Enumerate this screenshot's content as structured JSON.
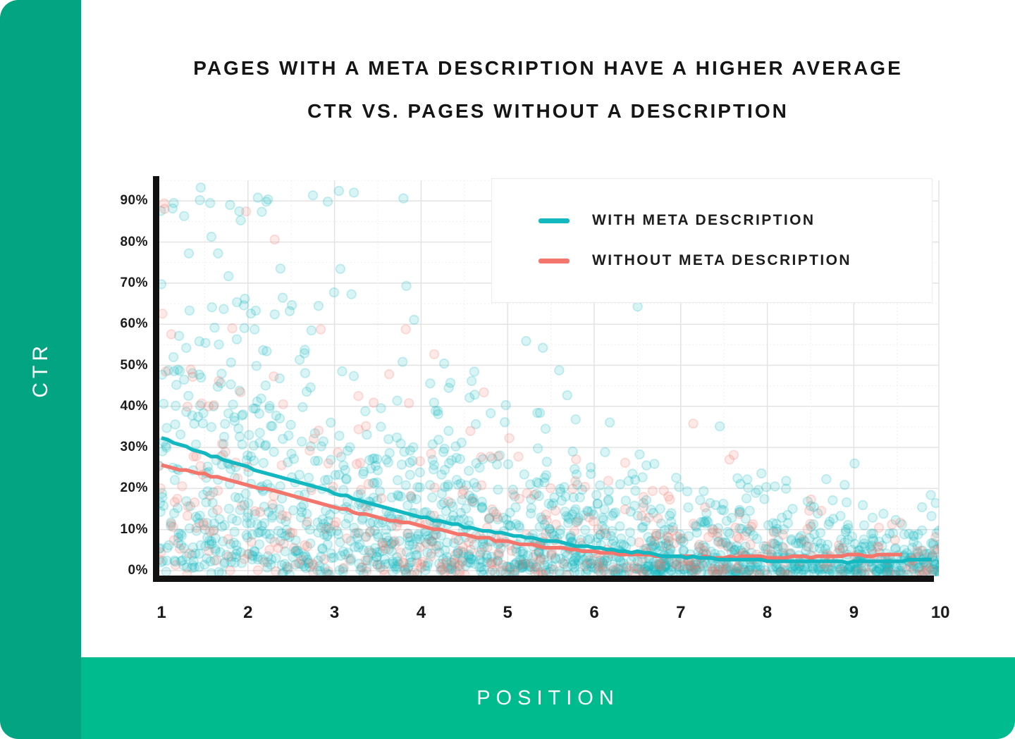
{
  "sidebar": {
    "label": "CTR",
    "color": "#03a482",
    "text_color": "#ffffff"
  },
  "bottom_bar": {
    "label": "POSITION",
    "color": "#00bb8e",
    "text_color": "#ffffff"
  },
  "title": {
    "line1": "PAGES WITH A META DESCRIPTION HAVE A HIGHER AVERAGE",
    "line2": "CTR VS. PAGES WITHOUT A DESCRIPTION",
    "color": "#151515"
  },
  "legend": {
    "items": [
      {
        "label": "WITH META DESCRIPTION",
        "color": "#14b8c0"
      },
      {
        "label": "WITHOUT META DESCRIPTION",
        "color": "#f3756c"
      }
    ]
  },
  "chart_data": {
    "type": "scatter",
    "title": "PAGES WITH A META DESCRIPTION HAVE A HIGHER AVERAGE CTR VS. PAGES WITHOUT A DESCRIPTION",
    "xlabel": "POSITION",
    "ylabel": "CTR",
    "x_ticks": [
      "1",
      "2",
      "3",
      "4",
      "5",
      "6",
      "7",
      "8",
      "9",
      "10"
    ],
    "y_ticks": [
      "0%",
      "10%",
      "20%",
      "30%",
      "40%",
      "50%",
      "60%",
      "70%",
      "80%",
      "90%"
    ],
    "xlim": [
      0.95,
      10.05
    ],
    "ylim_percent": [
      -2,
      95
    ],
    "legend_position": "top-right",
    "axis_color": "#111111",
    "grid": {
      "x_minor_step": 0.5,
      "y_minor_step_percent": 5,
      "color_major": "#e3e3e3",
      "color_minor": "#efefef"
    },
    "series": [
      {
        "name": "WITH META DESCRIPTION",
        "color": "#14b8c0",
        "trend_percent": [
          [
            1,
            32.2
          ],
          [
            1.5,
            28.5
          ],
          [
            2,
            25.0
          ],
          [
            2.5,
            22.0
          ],
          [
            3,
            19.0
          ],
          [
            3.5,
            15.8
          ],
          [
            4,
            13.0
          ],
          [
            4.5,
            10.7
          ],
          [
            5,
            8.8
          ],
          [
            5.5,
            7.1
          ],
          [
            6,
            5.6
          ],
          [
            6.5,
            4.4
          ],
          [
            7,
            3.4
          ],
          [
            7.5,
            2.8
          ],
          [
            8,
            2.4
          ],
          [
            8.5,
            2.2
          ],
          [
            9,
            2.2
          ],
          [
            9.5,
            2.4
          ],
          [
            9.9,
            2.7
          ]
        ]
      },
      {
        "name": "WITHOUT META DESCRIPTION",
        "color": "#f3756c",
        "trend_percent": [
          [
            1,
            25.7
          ],
          [
            1.5,
            23.3
          ],
          [
            2,
            20.9
          ],
          [
            2.5,
            18.4
          ],
          [
            3,
            15.4
          ],
          [
            3.5,
            13.0
          ],
          [
            4,
            10.8
          ],
          [
            4.5,
            8.7
          ],
          [
            5,
            7.0
          ],
          [
            5.5,
            5.6
          ],
          [
            6,
            4.6
          ],
          [
            6.5,
            3.8
          ],
          [
            7,
            3.4
          ],
          [
            7.5,
            3.3
          ],
          [
            8,
            3.3
          ],
          [
            8.5,
            3.4
          ],
          [
            9,
            3.6
          ],
          [
            9.56,
            4.0
          ]
        ]
      }
    ],
    "scatter": {
      "note": "Cloud of ~2100 translucent per-page data points; CTR spread decays exponentially with position. Rendered from these generation parameters with a fixed seed.",
      "seed": 1337,
      "point_radius": 6.3,
      "fill_opacity": 0.16,
      "stroke_opacity": 0.22,
      "groups": [
        {
          "series": "WITH META DESCRIPTION",
          "color": "#14b8c0",
          "count": 1700,
          "ctr_scale_base": 36,
          "ctr_scale_tail": 4.0,
          "decay": 2.6
        },
        {
          "series": "WITHOUT META DESCRIPTION",
          "color": "#f3756c",
          "count": 430,
          "ctr_scale_base": 30,
          "ctr_scale_tail": 3.6,
          "decay": 2.6
        }
      ]
    }
  }
}
